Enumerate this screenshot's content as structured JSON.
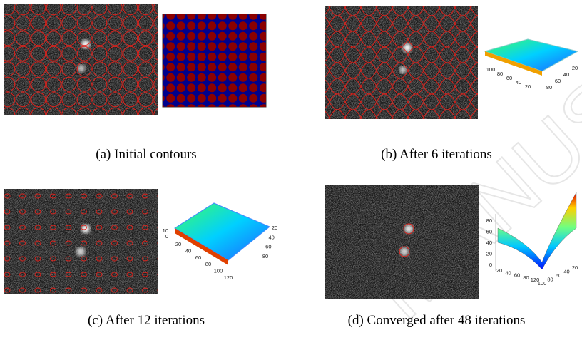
{
  "watermark": "MANUSCRIPT",
  "panels": [
    {
      "caption": "(a) Initial contours"
    },
    {
      "caption": "(b) After 6 iterations",
      "ticks_x": [
        100,
        80,
        60,
        40,
        20
      ],
      "ticks_y": [
        80,
        60,
        40,
        20
      ]
    },
    {
      "caption": "(c) After 12 iterations",
      "ticks_x": [
        20,
        40,
        60,
        80,
        100,
        120
      ],
      "ticks_y": [
        80,
        60,
        40,
        20
      ],
      "ticks_z": [
        10,
        0
      ]
    },
    {
      "caption": "(d) Converged after 48 iterations",
      "ticks_x": [
        20,
        40,
        60,
        80,
        120
      ],
      "ticks_y": [
        100,
        80,
        60,
        40,
        20
      ],
      "ticks_z": [
        80,
        60,
        40,
        20,
        0
      ]
    }
  ]
}
